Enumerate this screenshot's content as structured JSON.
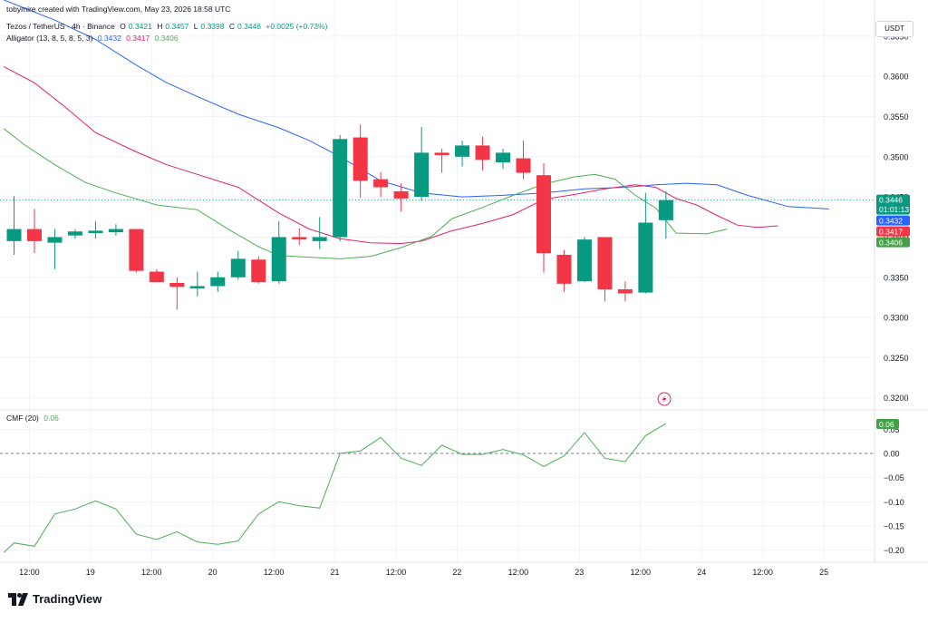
{
  "header": {
    "attribution": "tobymire created with TradingView.com, May 23, 2026 18:58 UTC"
  },
  "legend": {
    "symbol": "Tezos / TetherUS · 4h · Binance",
    "o_label": "O",
    "o": "0.3421",
    "h_label": "H",
    "h": "0.3457",
    "l_label": "L",
    "l": "0.3398",
    "c_label": "C",
    "c": "0.3446",
    "change": "+0.0025 (+0.73%)",
    "alligator_label": "Alligator (13, 8, 5, 8, 5, 3)",
    "jaw": "0.3432",
    "teeth": "0.3417",
    "lips": "0.3406",
    "cmf_label": "CMF (20)",
    "cmf_value": "0.06"
  },
  "currency_button": "USDT",
  "brand": "TradingView",
  "colors": {
    "up": "#089981",
    "down": "#f23645",
    "jaw": "#2962ff",
    "teeth": "#e91e63",
    "lips": "#4caf50",
    "cmf": "#4caf50",
    "grid": "#f0f3fa",
    "text": "#131722"
  },
  "price_tags": [
    {
      "value": "0.3446",
      "sub": "01:01:13",
      "color": "#089981"
    },
    {
      "value": "0.3432",
      "color": "#2962ff"
    },
    {
      "value": "0.3417",
      "color": "#f23645"
    },
    {
      "value": "0.3406",
      "color": "#43a047"
    }
  ],
  "cmf_tag": {
    "value": "0.06",
    "color": "#43a047"
  },
  "chart_data": {
    "type": "candlestick",
    "interval": "4h",
    "x_tick_labels": [
      "12:00",
      "19",
      "12:00",
      "20",
      "12:00",
      "21",
      "12:00",
      "22",
      "12:00",
      "23",
      "12:00",
      "24",
      "12:00",
      "25"
    ],
    "x_tick_bars": [
      0.75,
      3.75,
      6.75,
      9.75,
      12.75,
      15.75,
      18.75,
      21.75,
      24.75,
      27.75,
      30.75,
      33.75,
      36.75,
      39.75
    ],
    "price_ylim": [
      0.3185,
      0.3695
    ],
    "price_ticks": [
      "0.3650",
      "0.3600",
      "0.3550",
      "0.3500",
      "0.3450",
      "0.3400",
      "0.3350",
      "0.3300",
      "0.3250",
      "0.3200"
    ],
    "last_price": 0.3446,
    "candles": [
      {
        "o": 0.3395,
        "h": 0.3451,
        "l": 0.3378,
        "c": 0.341
      },
      {
        "o": 0.341,
        "h": 0.3435,
        "l": 0.338,
        "c": 0.3395
      },
      {
        "o": 0.3393,
        "h": 0.341,
        "l": 0.336,
        "c": 0.34
      },
      {
        "o": 0.3402,
        "h": 0.341,
        "l": 0.3398,
        "c": 0.3407
      },
      {
        "o": 0.3405,
        "h": 0.342,
        "l": 0.3398,
        "c": 0.3408
      },
      {
        "o": 0.3406,
        "h": 0.3416,
        "l": 0.3402,
        "c": 0.341
      },
      {
        "o": 0.341,
        "h": 0.341,
        "l": 0.3356,
        "c": 0.3358
      },
      {
        "o": 0.3357,
        "h": 0.336,
        "l": 0.3344,
        "c": 0.3344
      },
      {
        "o": 0.3343,
        "h": 0.335,
        "l": 0.331,
        "c": 0.3338
      },
      {
        "o": 0.3336,
        "h": 0.3357,
        "l": 0.3326,
        "c": 0.3339
      },
      {
        "o": 0.3339,
        "h": 0.3357,
        "l": 0.3332,
        "c": 0.335
      },
      {
        "o": 0.335,
        "h": 0.3383,
        "l": 0.3347,
        "c": 0.3373
      },
      {
        "o": 0.3372,
        "h": 0.3376,
        "l": 0.3342,
        "c": 0.3344
      },
      {
        "o": 0.3345,
        "h": 0.342,
        "l": 0.3342,
        "c": 0.34
      },
      {
        "o": 0.34,
        "h": 0.3411,
        "l": 0.339,
        "c": 0.3397
      },
      {
        "o": 0.3395,
        "h": 0.3425,
        "l": 0.3385,
        "c": 0.34
      },
      {
        "o": 0.34,
        "h": 0.3527,
        "l": 0.3395,
        "c": 0.3522
      },
      {
        "o": 0.3524,
        "h": 0.354,
        "l": 0.3449,
        "c": 0.347
      },
      {
        "o": 0.3472,
        "h": 0.3481,
        "l": 0.345,
        "c": 0.3462
      },
      {
        "o": 0.3457,
        "h": 0.3467,
        "l": 0.3432,
        "c": 0.3448
      },
      {
        "o": 0.345,
        "h": 0.3537,
        "l": 0.3445,
        "c": 0.3505
      },
      {
        "o": 0.3505,
        "h": 0.351,
        "l": 0.348,
        "c": 0.3502
      },
      {
        "o": 0.35,
        "h": 0.352,
        "l": 0.3488,
        "c": 0.3514
      },
      {
        "o": 0.3514,
        "h": 0.3525,
        "l": 0.3483,
        "c": 0.3496
      },
      {
        "o": 0.3493,
        "h": 0.351,
        "l": 0.3485,
        "c": 0.3505
      },
      {
        "o": 0.3498,
        "h": 0.352,
        "l": 0.3472,
        "c": 0.348
      },
      {
        "o": 0.3477,
        "h": 0.3492,
        "l": 0.3356,
        "c": 0.338
      },
      {
        "o": 0.3378,
        "h": 0.3384,
        "l": 0.3332,
        "c": 0.3342
      },
      {
        "o": 0.3345,
        "h": 0.34,
        "l": 0.3344,
        "c": 0.3397
      },
      {
        "o": 0.34,
        "h": 0.34,
        "l": 0.332,
        "c": 0.3335
      },
      {
        "o": 0.3335,
        "h": 0.3345,
        "l": 0.332,
        "c": 0.333
      },
      {
        "o": 0.3331,
        "h": 0.3455,
        "l": 0.333,
        "c": 0.3418
      },
      {
        "o": 0.3421,
        "h": 0.3457,
        "l": 0.3398,
        "c": 0.3446
      }
    ],
    "alligator": {
      "jaw": [
        [
          -0.5,
          0.3695
        ],
        [
          2,
          0.367
        ],
        [
          4,
          0.3646
        ],
        [
          6,
          0.3614
        ],
        [
          7.5,
          0.3592
        ],
        [
          9,
          0.3575
        ],
        [
          11,
          0.3553
        ],
        [
          13,
          0.3536
        ],
        [
          14.5,
          0.352
        ],
        [
          16,
          0.35
        ],
        [
          18,
          0.347
        ],
        [
          20,
          0.3455
        ],
        [
          22,
          0.345
        ],
        [
          24,
          0.3452
        ],
        [
          26,
          0.3455
        ],
        [
          28,
          0.346
        ],
        [
          30,
          0.3462
        ],
        [
          31.5,
          0.3465
        ],
        [
          33,
          0.3467
        ],
        [
          34.5,
          0.3465
        ],
        [
          36,
          0.3452
        ],
        [
          38,
          0.3438
        ],
        [
          40,
          0.3435
        ]
      ],
      "teeth": [
        [
          -0.5,
          0.3612
        ],
        [
          1,
          0.3592
        ],
        [
          2.5,
          0.3562
        ],
        [
          4,
          0.353
        ],
        [
          6,
          0.3506
        ],
        [
          7.5,
          0.349
        ],
        [
          9,
          0.3478
        ],
        [
          11,
          0.3462
        ],
        [
          13,
          0.343
        ],
        [
          14.5,
          0.341
        ],
        [
          16,
          0.3398
        ],
        [
          17.5,
          0.3393
        ],
        [
          19,
          0.3392
        ],
        [
          20,
          0.3395
        ],
        [
          21.5,
          0.3408
        ],
        [
          23,
          0.3417
        ],
        [
          24.5,
          0.3428
        ],
        [
          26,
          0.3447
        ],
        [
          27.5,
          0.3453
        ],
        [
          29,
          0.346
        ],
        [
          30.5,
          0.3465
        ],
        [
          31.5,
          0.3462
        ],
        [
          32.5,
          0.3448
        ],
        [
          33.5,
          0.344
        ],
        [
          34.5,
          0.3427
        ],
        [
          35.5,
          0.3415
        ],
        [
          36.5,
          0.3412
        ],
        [
          37.5,
          0.3414
        ]
      ],
      "lips": [
        [
          -0.5,
          0.3535
        ],
        [
          0.5,
          0.3515
        ],
        [
          2,
          0.349
        ],
        [
          3.5,
          0.3468
        ],
        [
          5,
          0.3455
        ],
        [
          7,
          0.344
        ],
        [
          9,
          0.3434
        ],
        [
          10.5,
          0.341
        ],
        [
          12,
          0.3388
        ],
        [
          13,
          0.3377
        ],
        [
          14.5,
          0.3375
        ],
        [
          16,
          0.3373
        ],
        [
          17.5,
          0.3376
        ],
        [
          19,
          0.3387
        ],
        [
          20.5,
          0.3401
        ],
        [
          21.5,
          0.3423
        ],
        [
          23,
          0.3437
        ],
        [
          24.5,
          0.3452
        ],
        [
          26,
          0.3466
        ],
        [
          27.5,
          0.3475
        ],
        [
          28.5,
          0.3478
        ],
        [
          29.5,
          0.3472
        ],
        [
          30.5,
          0.3452
        ],
        [
          31.5,
          0.3436
        ],
        [
          32.5,
          0.3405
        ],
        [
          34,
          0.3404
        ],
        [
          35,
          0.341
        ]
      ]
    },
    "cmf": {
      "name": "CMF (20)",
      "ylim": [
        -0.225,
        0.09
      ],
      "ticks": [
        0.05,
        0.0,
        -0.05,
        -0.1,
        -0.15,
        -0.2
      ],
      "tick_labels": [
        "0.05",
        "0.00",
        "−0.05",
        "−0.10",
        "−0.15",
        "−0.20"
      ],
      "zero_line": 0.0,
      "values": [
        [
          -0.5,
          -0.205
        ],
        [
          0,
          -0.185
        ],
        [
          1,
          -0.192
        ],
        [
          2,
          -0.125
        ],
        [
          3,
          -0.115
        ],
        [
          4,
          -0.098
        ],
        [
          5,
          -0.115
        ],
        [
          6,
          -0.167
        ],
        [
          7,
          -0.178
        ],
        [
          8,
          -0.162
        ],
        [
          9,
          -0.183
        ],
        [
          10,
          -0.188
        ],
        [
          11,
          -0.181
        ],
        [
          12,
          -0.125
        ],
        [
          13,
          -0.1
        ],
        [
          14,
          -0.108
        ],
        [
          15,
          -0.113
        ],
        [
          16,
          0.0
        ],
        [
          17,
          0.005
        ],
        [
          18,
          0.033
        ],
        [
          19,
          -0.01
        ],
        [
          20,
          -0.025
        ],
        [
          21,
          0.017
        ],
        [
          22,
          -0.002
        ],
        [
          23,
          -0.002
        ],
        [
          24,
          0.008
        ],
        [
          25,
          -0.003
        ],
        [
          26,
          -0.027
        ],
        [
          27,
          -0.005
        ],
        [
          28,
          0.043
        ],
        [
          29,
          -0.01
        ],
        [
          30,
          -0.017
        ],
        [
          31,
          0.037
        ],
        [
          32,
          0.062
        ]
      ]
    }
  }
}
